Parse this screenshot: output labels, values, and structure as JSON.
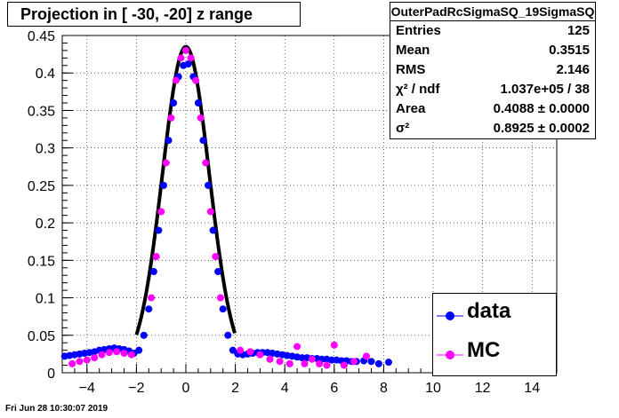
{
  "header": {
    "title": "Projection in [ -30, -20] z range"
  },
  "stats": {
    "name": "OuterPadRcSigmaSQ_19SigmaSQ",
    "rows": [
      {
        "key": "Entries",
        "value": "125"
      },
      {
        "key": "Mean",
        "value": "0.3515"
      },
      {
        "key": "RMS",
        "value": "2.146"
      },
      {
        "key": "χ² / ndf",
        "value": "1.037e+05 / 38"
      },
      {
        "key": "Area",
        "value": "0.4088 ± 0.0000"
      },
      {
        "key": "σ²",
        "value": "0.8925 ± 0.0002"
      }
    ]
  },
  "legend": {
    "items": [
      {
        "label": "data",
        "color": "#0000ff"
      },
      {
        "label": "MC",
        "color": "#ff00ff"
      }
    ]
  },
  "footer": {
    "timestamp": "Fri Jun 28 10:30:07 2019"
  },
  "chart_data": {
    "type": "scatter",
    "xlim": [
      -5,
      15
    ],
    "ylim": [
      0,
      0.45
    ],
    "xticks": [
      -4,
      -2,
      0,
      2,
      4,
      6,
      8,
      10,
      12,
      14
    ],
    "yticks": [
      0.05,
      0.1,
      0.15,
      0.2,
      0.25,
      0.3,
      0.35,
      0.4,
      0.45
    ],
    "grid": true,
    "legend_position": "bottom-right",
    "series": [
      {
        "name": "data",
        "color": "#0000ff",
        "points": [
          [
            -4.9,
            0.022
          ],
          [
            -4.7,
            0.023
          ],
          [
            -4.5,
            0.024
          ],
          [
            -4.3,
            0.025
          ],
          [
            -4.1,
            0.026
          ],
          [
            -3.9,
            0.027
          ],
          [
            -3.7,
            0.028
          ],
          [
            -3.5,
            0.03
          ],
          [
            -3.3,
            0.031
          ],
          [
            -3.1,
            0.032
          ],
          [
            -2.9,
            0.033
          ],
          [
            -2.7,
            0.032
          ],
          [
            -2.5,
            0.031
          ],
          [
            -2.3,
            0.029
          ],
          [
            -2.1,
            0.026
          ],
          [
            -1.9,
            0.03
          ],
          [
            -1.7,
            0.05
          ],
          [
            -1.5,
            0.085
          ],
          [
            -1.3,
            0.135
          ],
          [
            -1.1,
            0.19
          ],
          [
            -0.9,
            0.25
          ],
          [
            -0.7,
            0.31
          ],
          [
            -0.5,
            0.36
          ],
          [
            -0.3,
            0.395
          ],
          [
            -0.1,
            0.41
          ],
          [
            0.1,
            0.412
          ],
          [
            0.3,
            0.395
          ],
          [
            0.5,
            0.36
          ],
          [
            0.7,
            0.31
          ],
          [
            0.9,
            0.25
          ],
          [
            1.1,
            0.19
          ],
          [
            1.3,
            0.135
          ],
          [
            1.5,
            0.085
          ],
          [
            1.7,
            0.05
          ],
          [
            1.9,
            0.03
          ],
          [
            2.1,
            0.025
          ],
          [
            2.3,
            0.024
          ],
          [
            2.5,
            0.025
          ],
          [
            2.7,
            0.026
          ],
          [
            2.9,
            0.027
          ],
          [
            3.1,
            0.027
          ],
          [
            3.3,
            0.027
          ],
          [
            3.5,
            0.026
          ],
          [
            3.7,
            0.025
          ],
          [
            3.9,
            0.024
          ],
          [
            4.1,
            0.023
          ],
          [
            4.3,
            0.022
          ],
          [
            4.5,
            0.021
          ],
          [
            4.7,
            0.02
          ],
          [
            4.9,
            0.02
          ],
          [
            5.1,
            0.019
          ],
          [
            5.3,
            0.019
          ],
          [
            5.5,
            0.018
          ],
          [
            5.7,
            0.018
          ],
          [
            5.9,
            0.017
          ],
          [
            6.1,
            0.017
          ],
          [
            6.3,
            0.016
          ],
          [
            6.5,
            0.016
          ],
          [
            6.7,
            0.015
          ],
          [
            6.9,
            0.015
          ],
          [
            7.2,
            0.016
          ],
          [
            7.5,
            0.015
          ],
          [
            7.8,
            0.012
          ],
          [
            8.2,
            0.014
          ]
        ]
      },
      {
        "name": "MC",
        "color": "#ff00ff",
        "points": [
          [
            -4.6,
            0.012
          ],
          [
            -4.3,
            0.015
          ],
          [
            -4.0,
            0.017
          ],
          [
            -3.7,
            0.02
          ],
          [
            -3.4,
            0.024
          ],
          [
            -3.1,
            0.027
          ],
          [
            -2.8,
            0.028
          ],
          [
            -2.5,
            0.026
          ],
          [
            -2.2,
            0.024
          ],
          [
            -1.4,
            0.1
          ],
          [
            -1.2,
            0.155
          ],
          [
            -1.0,
            0.215
          ],
          [
            -0.8,
            0.28
          ],
          [
            -0.6,
            0.34
          ],
          [
            -0.4,
            0.39
          ],
          [
            -0.2,
            0.42
          ],
          [
            0.0,
            0.43
          ],
          [
            0.2,
            0.42
          ],
          [
            0.4,
            0.39
          ],
          [
            0.6,
            0.34
          ],
          [
            0.8,
            0.28
          ],
          [
            1.0,
            0.215
          ],
          [
            1.2,
            0.155
          ],
          [
            1.4,
            0.1
          ],
          [
            2.2,
            0.03
          ],
          [
            2.6,
            0.028
          ],
          [
            3.0,
            0.024
          ],
          [
            3.4,
            0.018
          ],
          [
            3.8,
            0.015
          ],
          [
            4.2,
            0.012
          ],
          [
            4.5,
            0.035
          ],
          [
            4.8,
            0.012
          ],
          [
            5.1,
            0.018
          ],
          [
            5.4,
            0.012
          ],
          [
            5.7,
            0.01
          ],
          [
            6.0,
            0.037
          ],
          [
            6.4,
            0.01
          ],
          [
            6.8,
            0.015
          ],
          [
            7.3,
            0.022
          ]
        ]
      }
    ]
  }
}
